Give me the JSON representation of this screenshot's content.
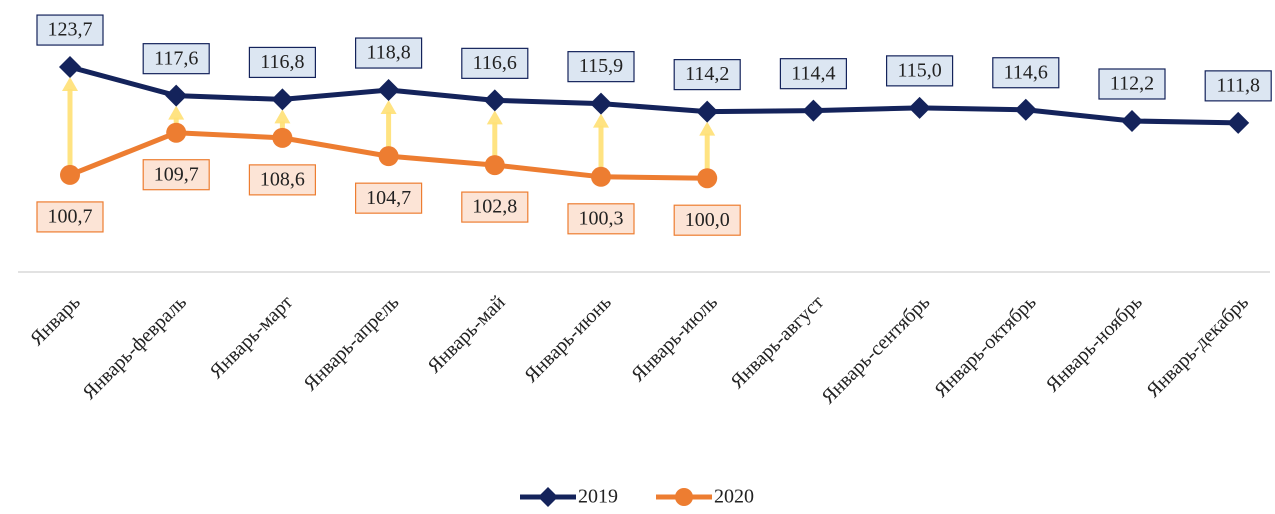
{
  "chart_data": {
    "type": "line",
    "categories": [
      "Январь",
      "Январь-февраль",
      "Январь-март",
      "Январь-апрель",
      "Январь-май",
      "Январь-июнь",
      "Январь-июль",
      "Январь-август",
      "Январь-сентябрь",
      "Январь-октябрь",
      "Январь-ноябрь",
      "Январь-декабрь"
    ],
    "series": [
      {
        "name": "2019",
        "color": "#14235b",
        "marker": "diamond",
        "values": [
          123.7,
          117.6,
          116.8,
          118.8,
          116.6,
          115.9,
          114.2,
          114.4,
          115.0,
          114.6,
          112.2,
          111.8
        ],
        "value_labels": [
          "123,7",
          "117,6",
          "116,8",
          "118,8",
          "116,6",
          "115,9",
          "114,2",
          "114,4",
          "115,0",
          "114,6",
          "112,2",
          "111,8"
        ]
      },
      {
        "name": "2020",
        "color": "#ed7d31",
        "marker": "circle",
        "values": [
          100.7,
          109.7,
          108.6,
          104.7,
          102.8,
          100.3,
          100.0,
          null,
          null,
          null,
          null,
          null
        ],
        "value_labels": [
          "100,7",
          "109,7",
          "108,6",
          "104,7",
          "102,8",
          "100,3",
          "100,0",
          null,
          null,
          null,
          null,
          null
        ]
      }
    ],
    "ylim": [
      80,
      138
    ],
    "legend": "bottom"
  }
}
